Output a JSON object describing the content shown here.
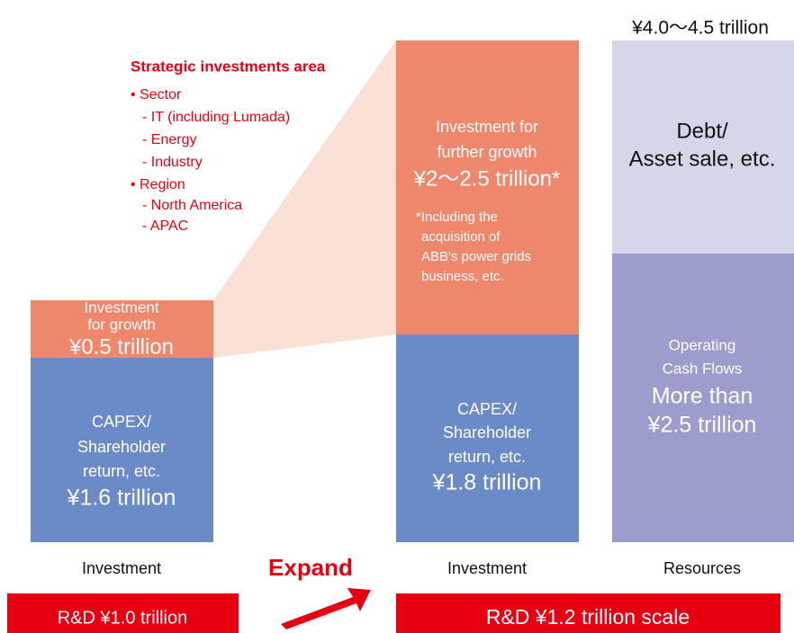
{
  "left_column": {
    "growth": [
      "Investment",
      "for growth",
      "¥0.5 trillion"
    ],
    "capex": [
      "CAPEX/",
      "Shareholder",
      "return, etc.",
      "¥1.6 trillion"
    ],
    "label": "Investment",
    "rd": "R&D ¥1.0 trillion"
  },
  "strategic": {
    "title": "Strategic investments area",
    "items": [
      "• Sector",
      "- IT (including Lumada)",
      "- Energy",
      "- Industry",
      "• Region",
      "- North America",
      "- APAC"
    ]
  },
  "expand": "Expand",
  "middle_column": {
    "growth": [
      "Investment for",
      "further growth",
      "¥2〜2.5 trillion*"
    ],
    "note": [
      "*Including the",
      "acquisition of",
      "ABB's power grids",
      "business, etc."
    ],
    "capex": [
      "CAPEX/",
      "Shareholder",
      "return, etc.",
      "¥1.8 trillion"
    ],
    "label": "Investment",
    "rd": "R&D ¥1.2 trillion scale"
  },
  "right_column": {
    "total": "¥4.0〜4.5 trillion",
    "debt": [
      "Debt/",
      "Asset sale, etc."
    ],
    "ocf": [
      "Operating",
      "Cash Flows",
      "More than",
      "¥2.5 trillion"
    ],
    "label": "Resources"
  }
}
